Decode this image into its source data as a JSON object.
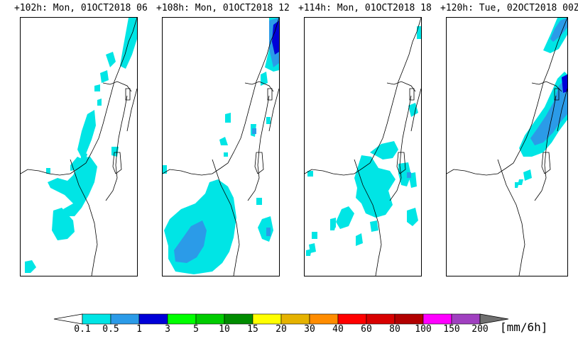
{
  "panels": [
    {
      "title": "+102h: Mon, 01OCT2018 06"
    },
    {
      "title": "+108h: Mon, 01OCT2018 12"
    },
    {
      "title": "+114h: Mon, 01OCT2018 18"
    },
    {
      "title": "+120h: Tue, 02OCT2018 00Z"
    }
  ],
  "legend": {
    "unit": "[mm/6h]",
    "labels": [
      "0.1",
      "0.5",
      "1",
      "3",
      "5",
      "10",
      "15",
      "20",
      "30",
      "40",
      "60",
      "80",
      "100",
      "150",
      "200"
    ],
    "colors": [
      "#00e5e5",
      "#2b9be8",
      "#0000d8",
      "#00ff00",
      "#00cc00",
      "#008c00",
      "#ffff00",
      "#e5b200",
      "#ff8c00",
      "#ff0000",
      "#d80000",
      "#b20000",
      "#ff00ff",
      "#a040c0"
    ],
    "under_color": "#ffffff",
    "over_color": "#707070"
  },
  "colors": {
    "light_precip": "#00e5e5",
    "medium_precip": "#2b9be8",
    "heavy_precip": "#0000d8"
  }
}
